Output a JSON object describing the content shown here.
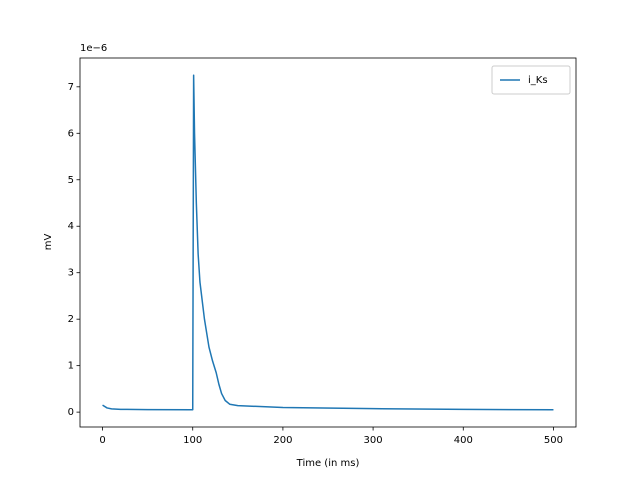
{
  "chart_data": {
    "type": "line",
    "xlabel": "Time (in ms)",
    "ylabel": "mV",
    "offset_label": "1e−6",
    "x": [
      0,
      5,
      10,
      20,
      50,
      99,
      100,
      101,
      102,
      104,
      106,
      108,
      113,
      118,
      122,
      126,
      129,
      132,
      136,
      141,
      150,
      200,
      300,
      400,
      500
    ],
    "series": [
      {
        "name": "i_Ks",
        "color": "#1f77b4",
        "values": [
          0.15,
          0.09,
          0.07,
          0.06,
          0.055,
          0.05,
          0.05,
          7.25,
          6.0,
          4.5,
          3.4,
          2.8,
          2.0,
          1.4,
          1.1,
          0.85,
          0.6,
          0.4,
          0.25,
          0.17,
          0.14,
          0.1,
          0.075,
          0.06,
          0.05
        ]
      }
    ],
    "xlim": [
      -25,
      525
    ],
    "ylim": [
      -0.32,
      7.62
    ],
    "xticks": [
      0,
      100,
      200,
      300,
      400,
      500
    ],
    "yticks": [
      0,
      1,
      2,
      3,
      4,
      5,
      6,
      7
    ],
    "legend": "upper right"
  }
}
